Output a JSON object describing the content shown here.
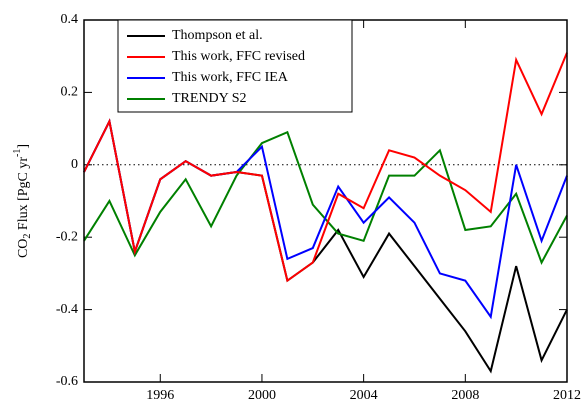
{
  "chart_data": {
    "type": "line",
    "ylabel_parts": [
      "CO",
      "2",
      " Flux [PgC yr",
      "-1",
      "]"
    ],
    "x": [
      1993,
      1994,
      1995,
      1996,
      1997,
      1998,
      1999,
      2000,
      2001,
      2002,
      2003,
      2004,
      2005,
      2006,
      2007,
      2008,
      2009,
      2010,
      2011,
      2012
    ],
    "series": [
      {
        "name": "Thompson et al.",
        "color": "#000000",
        "values": [
          -0.02,
          0.12,
          -0.24,
          -0.04,
          0.01,
          -0.03,
          -0.02,
          -0.03,
          -0.32,
          -0.27,
          -0.18,
          -0.31,
          -0.19,
          -0.28,
          -0.37,
          -0.46,
          -0.57,
          -0.28,
          -0.54,
          -0.4
        ]
      },
      {
        "name": "This work, FFC revised",
        "color": "#ff0000",
        "values": [
          -0.02,
          0.12,
          -0.24,
          -0.04,
          0.01,
          -0.03,
          -0.02,
          -0.03,
          -0.32,
          -0.27,
          -0.08,
          -0.12,
          0.04,
          0.02,
          -0.03,
          -0.07,
          -0.13,
          0.29,
          0.14,
          0.31
        ]
      },
      {
        "name": "This work, FFC IEA",
        "color": "#0000ff",
        "values": [
          -0.02,
          0.12,
          -0.24,
          -0.04,
          0.01,
          -0.03,
          -0.02,
          0.05,
          -0.26,
          -0.23,
          -0.06,
          -0.16,
          -0.09,
          -0.16,
          -0.3,
          -0.32,
          -0.42,
          0.0,
          -0.21,
          -0.03
        ]
      },
      {
        "name": "TRENDY S2",
        "color": "#008000",
        "values": [
          -0.21,
          -0.1,
          -0.25,
          -0.13,
          -0.04,
          -0.17,
          -0.03,
          0.06,
          0.09,
          -0.11,
          -0.19,
          -0.21,
          -0.03,
          -0.03,
          0.04,
          -0.18,
          -0.17,
          -0.08,
          -0.27,
          -0.14
        ]
      }
    ],
    "xlim": [
      1993,
      2012
    ],
    "xticks": [
      1996,
      2000,
      2004,
      2008,
      2012
    ],
    "ylim": [
      -0.6,
      0.4
    ],
    "yticks": [
      -0.6,
      -0.4,
      -0.2,
      0,
      0.2,
      0.4
    ],
    "zero_line": true,
    "legend": "upper left"
  }
}
